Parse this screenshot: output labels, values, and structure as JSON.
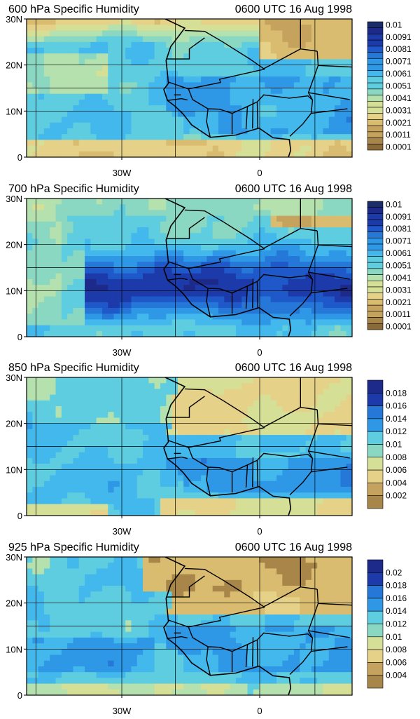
{
  "chart_data": [
    {
      "type": "heatmap",
      "title": "600 hPa Specific Humidity",
      "time": "0600 UTC 16 Aug 1998",
      "x_ticks": [
        "30W",
        "0"
      ],
      "y_ticks": [
        "30N",
        "20N",
        "10N",
        "0"
      ],
      "colorbar_labels": [
        "0.01",
        "0.0091",
        "0.0081",
        "0.0071",
        "0.0061",
        "0.0051",
        "0.0041",
        "0.0031",
        "0.0021",
        "0.0011",
        "0.0001"
      ]
    },
    {
      "type": "heatmap",
      "title": "700 hPa Specific Humidity",
      "time": "0600 UTC 16 Aug 1998",
      "x_ticks": [
        "30W",
        "0"
      ],
      "y_ticks": [
        "30N",
        "20N",
        "10N",
        "0"
      ],
      "colorbar_labels": [
        "0.01",
        "0.0091",
        "0.0081",
        "0.0071",
        "0.0061",
        "0.0051",
        "0.0041",
        "0.0031",
        "0.0021",
        "0.0011",
        "0.0001"
      ]
    },
    {
      "type": "heatmap",
      "title": "850 hPa Specific Humidity",
      "time": "0600 UTC 16 Aug 1998",
      "x_ticks": [
        "30W",
        "0"
      ],
      "y_ticks": [
        "30N",
        "20N",
        "10N",
        "0"
      ],
      "colorbar_labels": [
        "0.018",
        "0.016",
        "0.014",
        "0.012",
        "0.01",
        "0.008",
        "0.006",
        "0.004",
        "0.002"
      ]
    },
    {
      "type": "heatmap",
      "title": "925 hPa Specific Humidity",
      "time": "0600 UTC 16 Aug 1998",
      "x_ticks": [
        "30W",
        "0"
      ],
      "y_ticks": [
        "30N",
        "20N",
        "10N",
        "0"
      ],
      "colorbar_labels": [
        "0.02",
        "0.018",
        "0.016",
        "0.014",
        "0.012",
        "0.01",
        "0.008",
        "0.006",
        "0.004"
      ]
    }
  ]
}
